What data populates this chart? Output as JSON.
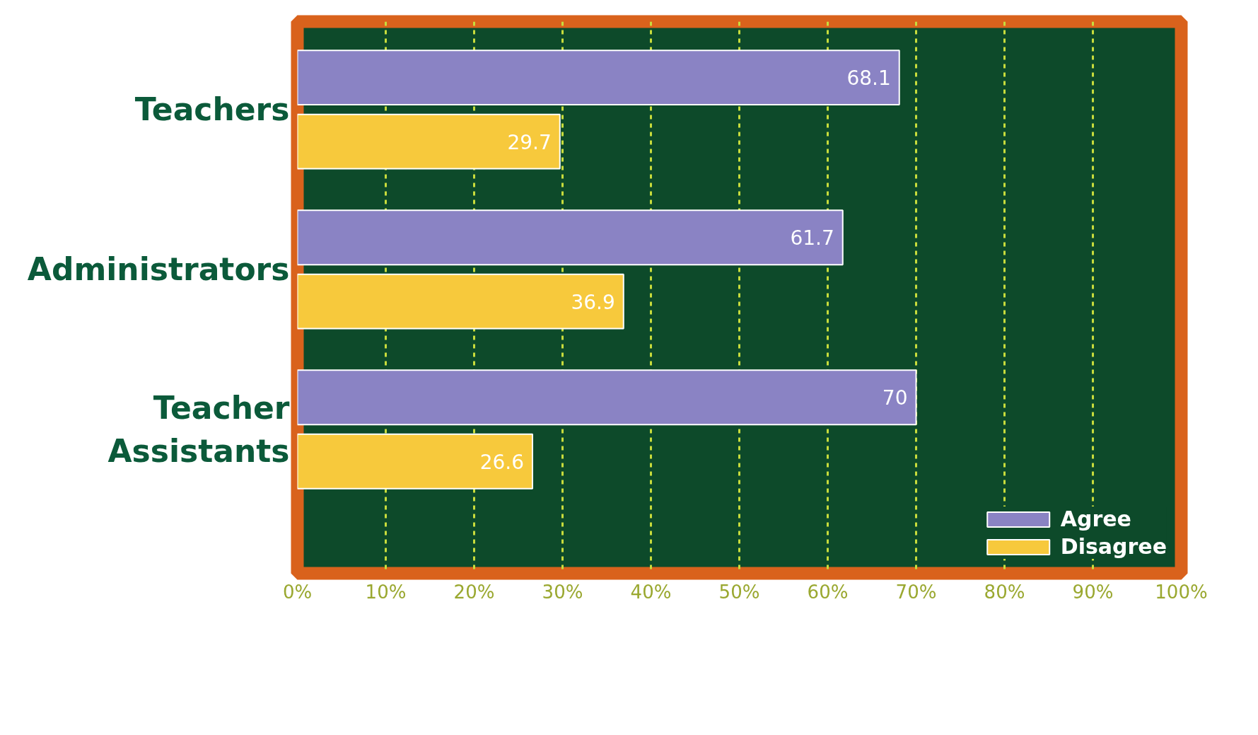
{
  "chart_data": {
    "type": "bar",
    "orientation": "horizontal",
    "categories": [
      "Teachers",
      "Administrators",
      "Teacher Assistants"
    ],
    "series": [
      {
        "name": "Agree",
        "color": "#8a83c4",
        "values": [
          68.1,
          61.7,
          70
        ]
      },
      {
        "name": "Disagree",
        "color": "#f7c93c",
        "values": [
          29.7,
          36.9,
          26.6
        ]
      }
    ],
    "xlim": [
      0,
      100
    ],
    "xticks": [
      {
        "value": 0,
        "label": "0%"
      },
      {
        "value": 10,
        "label": "10%"
      },
      {
        "value": 20,
        "label": "20%"
      },
      {
        "value": 30,
        "label": "30%"
      },
      {
        "value": 40,
        "label": "40%"
      },
      {
        "value": 50,
        "label": "50%"
      },
      {
        "value": 60,
        "label": "60%"
      },
      {
        "value": 70,
        "label": "70%"
      },
      {
        "value": 80,
        "label": "80%"
      },
      {
        "value": 90,
        "label": "90%"
      },
      {
        "value": 100,
        "label": "100%"
      }
    ],
    "grid": "x",
    "data_labels": true,
    "legend": "bottom right"
  }
}
